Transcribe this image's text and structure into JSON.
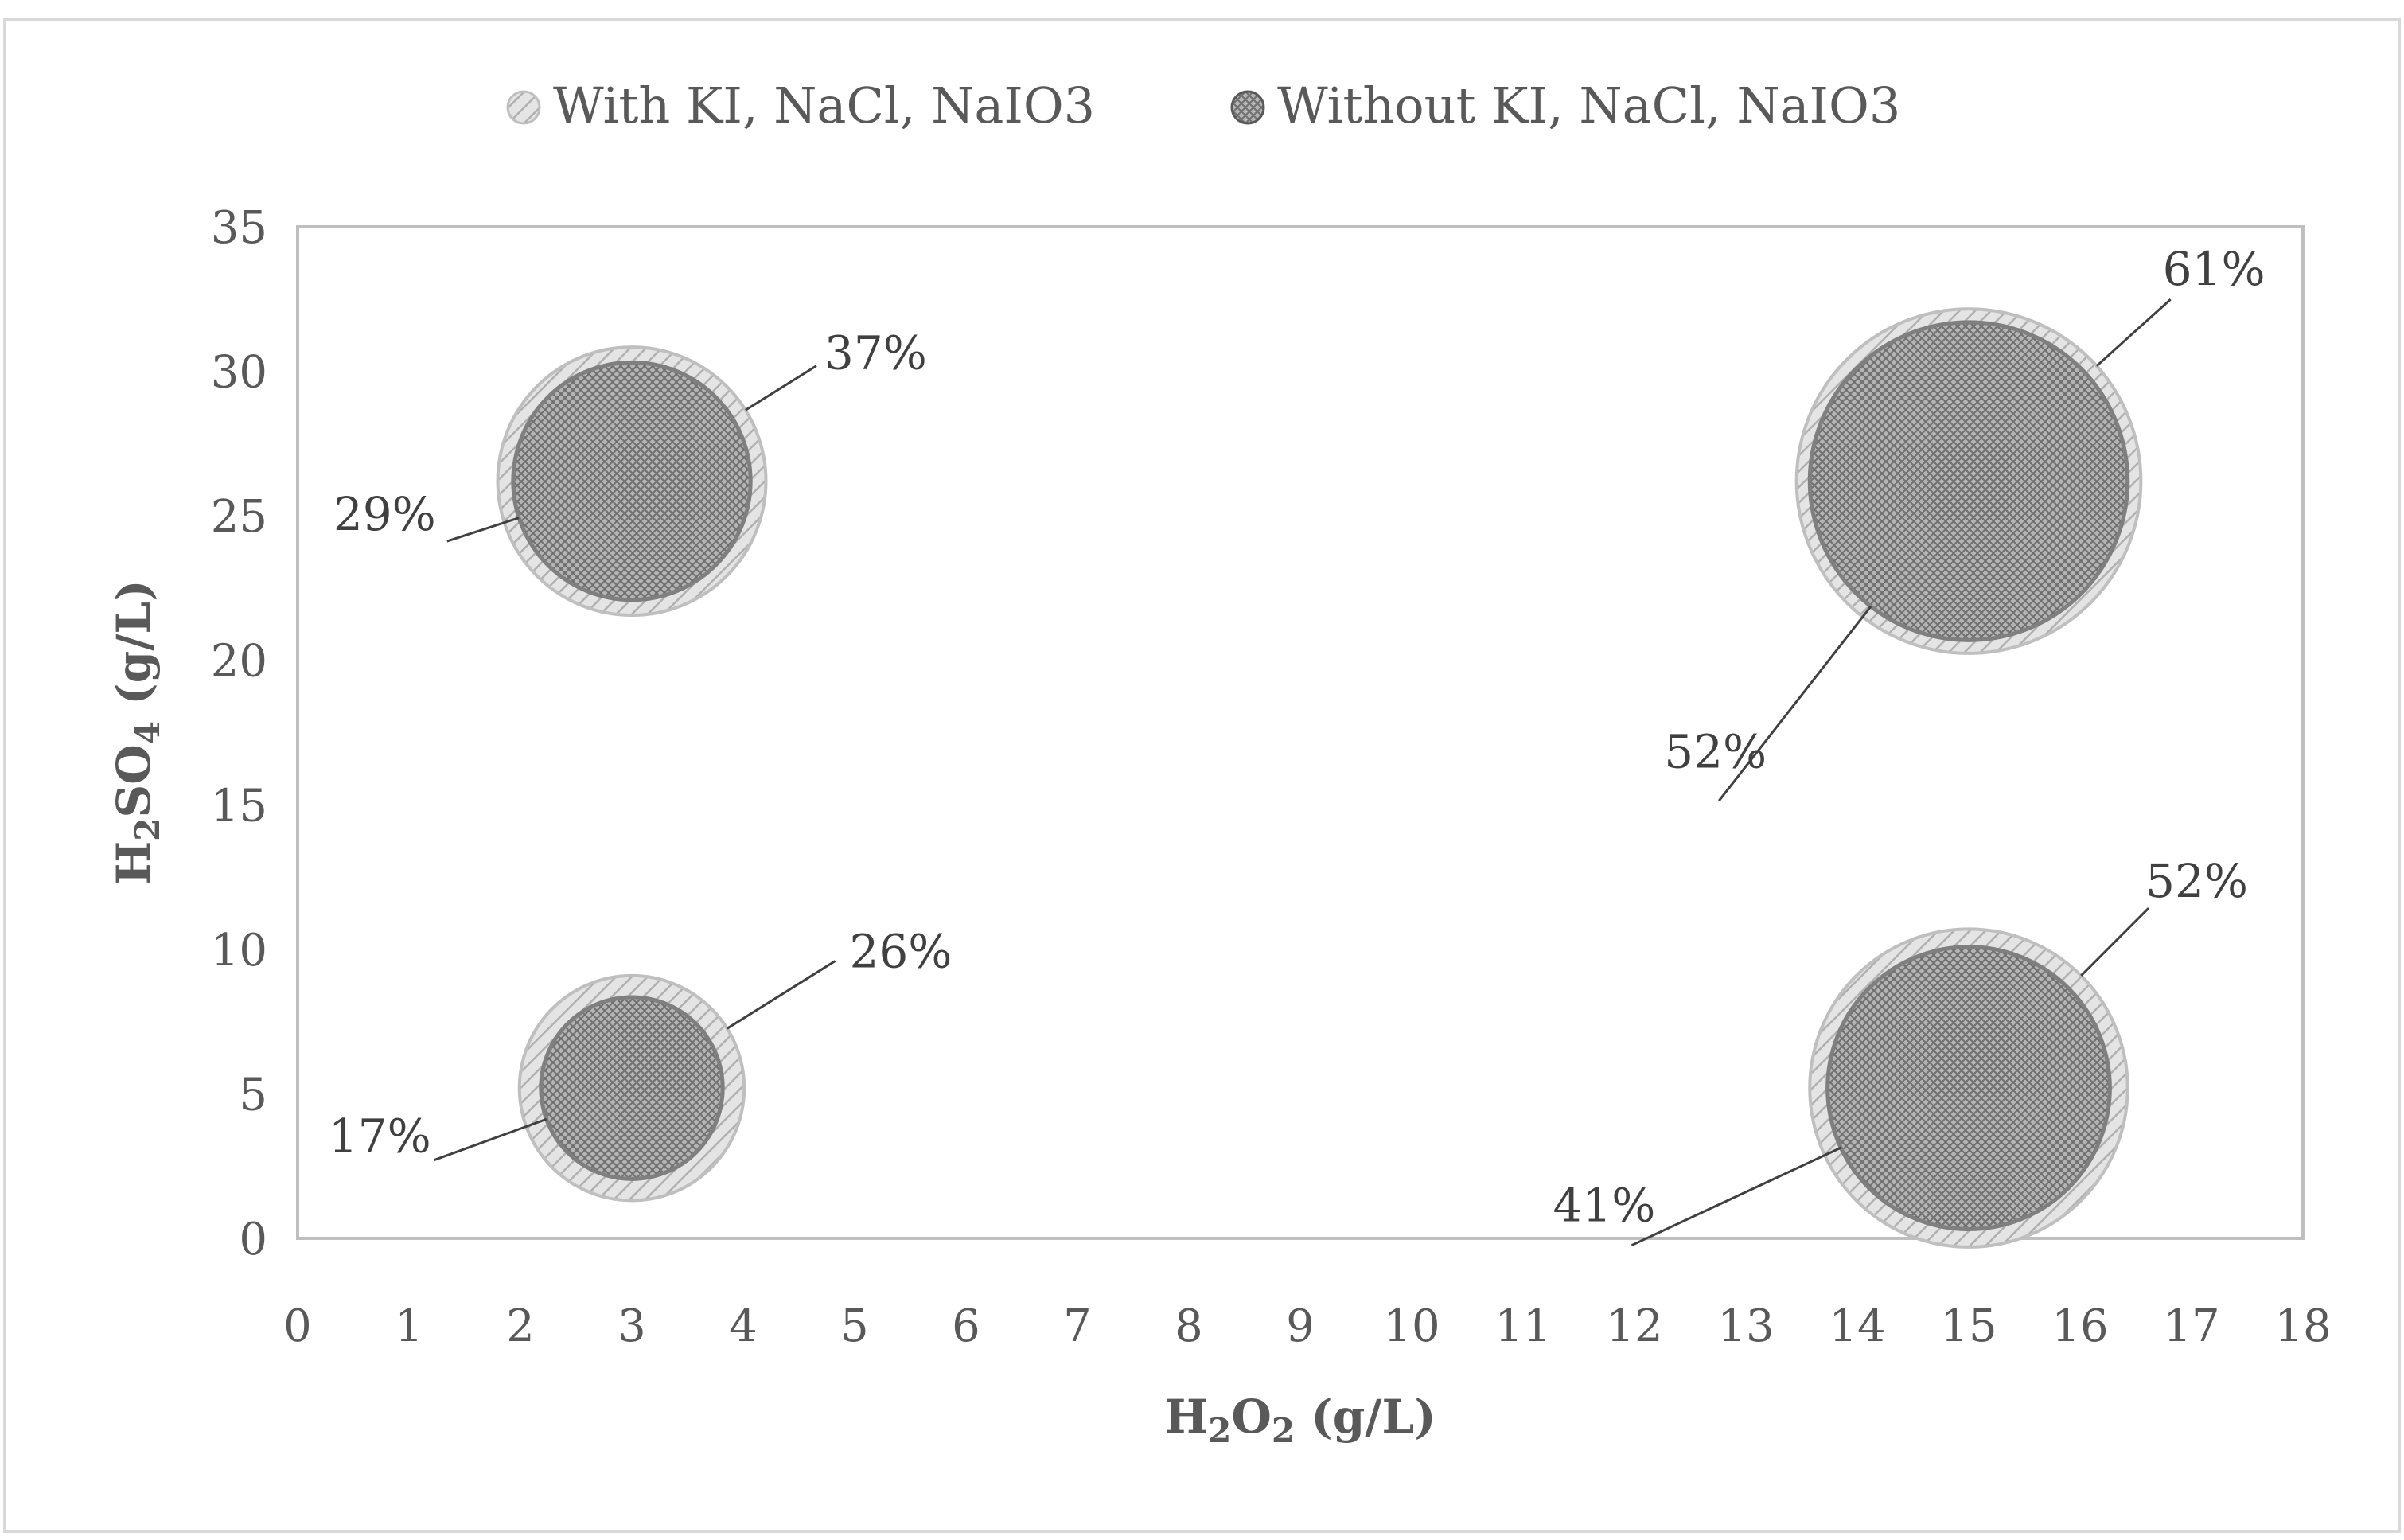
{
  "chart_data": {
    "type": "bubble",
    "title": "",
    "xlabel": {
      "base": "H",
      "sub1": "2",
      "mid": "O",
      "sub2": "2",
      "unit": " (g/L)"
    },
    "ylabel": {
      "base": "H",
      "sub1": "2",
      "mid": "SO",
      "sub2": "4",
      "unit": " (g/L)"
    },
    "xlim": [
      0,
      18
    ],
    "ylim": [
      0,
      35
    ],
    "x_ticks": [
      0,
      1,
      2,
      3,
      4,
      5,
      6,
      7,
      8,
      9,
      10,
      11,
      12,
      13,
      14,
      15,
      16,
      17,
      18
    ],
    "y_ticks": [
      0,
      5,
      10,
      15,
      20,
      25,
      30,
      35
    ],
    "legend": {
      "placement": "top-center",
      "entries": [
        "With KI, NaCl, NaIO3",
        "Without KI, NaCl, NaIO3"
      ]
    },
    "series": [
      {
        "name": "With KI, NaCl, NaIO3",
        "color": "#d9d9d9",
        "edge": "#bfbfbf",
        "points": [
          {
            "x": 3,
            "y": 5.2,
            "size": 26,
            "label": "26%"
          },
          {
            "x": 3,
            "y": 26.2,
            "size": 37,
            "label": "37%"
          },
          {
            "x": 15,
            "y": 5.2,
            "size": 52,
            "label": "52%"
          },
          {
            "x": 15,
            "y": 26.2,
            "size": 61,
            "label": "61%"
          }
        ]
      },
      {
        "name": "Without KI, NaCl, NaIO3",
        "color": "#a6a6a6",
        "edge": "#7f7f7f",
        "points": [
          {
            "x": 3,
            "y": 5.2,
            "size": 17,
            "label": "17%"
          },
          {
            "x": 3,
            "y": 26.2,
            "size": 29,
            "label": "29%"
          },
          {
            "x": 15,
            "y": 5.2,
            "size": 41,
            "label": "41%"
          },
          {
            "x": 15,
            "y": 26.2,
            "size": 52,
            "label": "52%"
          }
        ]
      }
    ]
  }
}
